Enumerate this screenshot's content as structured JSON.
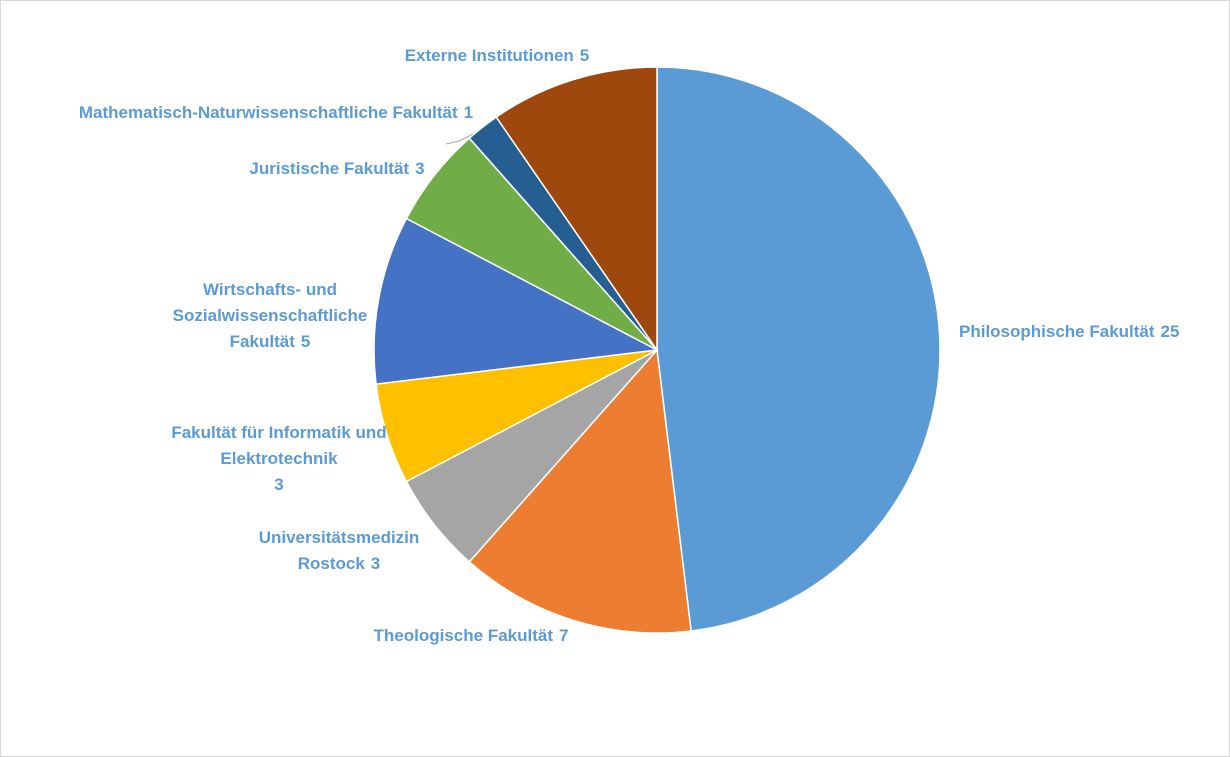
{
  "chart_data": {
    "type": "pie",
    "categories": [
      "Philosophische Fakultät",
      "Theologische Fakultät",
      "Universitätsmedizin Rostock",
      "Fakultät für Informatik und Elektrotechnik",
      "Wirtschafts- und Sozialwissenschaftliche Fakultät",
      "Juristische Fakultät",
      "Mathematisch-Naturwissenschaftliche Fakultät",
      "Externe Institutionen"
    ],
    "values": [
      25,
      7,
      3,
      3,
      5,
      3,
      1,
      5
    ],
    "colors": [
      "#5b9bd5",
      "#ed7d31",
      "#a5a5a5",
      "#ffc000",
      "#4472c4",
      "#70ad47",
      "#255e91",
      "#9e480e"
    ]
  }
}
